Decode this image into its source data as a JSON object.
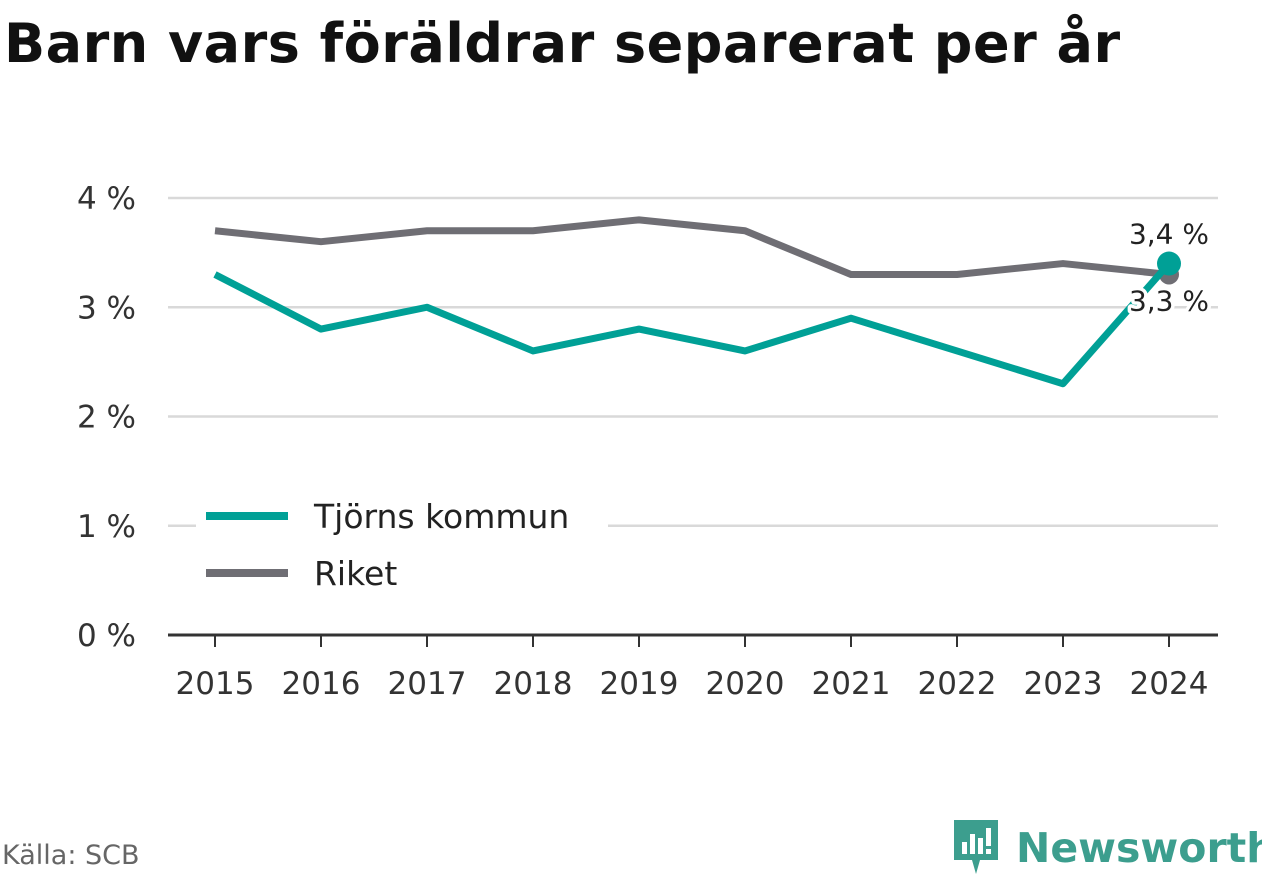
{
  "title": "Barn vars föräldrar separerat per år",
  "source": "Källa: SCB",
  "brand": "Newsworthy",
  "colors": {
    "tjorn": "#00a096",
    "riket": "#6f6e74",
    "grid": "#d9d9d9",
    "axis": "#333333",
    "brand": "#3c9e8e"
  },
  "icons": {
    "brand_logo": "newsworthy-logo-icon"
  },
  "chart_data": {
    "type": "line",
    "x": [
      "2015",
      "2016",
      "2017",
      "2018",
      "2019",
      "2020",
      "2021",
      "2022",
      "2023",
      "2024"
    ],
    "y_ticks": [
      "0 %",
      "1 %",
      "2 %",
      "3 %",
      "4 %"
    ],
    "ylim": [
      0,
      4
    ],
    "grid": true,
    "legend_position": "bottom-left",
    "series": [
      {
        "name": "Tjörns kommun",
        "color": "#00a096",
        "values": [
          3.3,
          2.8,
          3.0,
          2.6,
          2.8,
          2.6,
          2.9,
          2.6,
          2.3,
          3.4
        ],
        "end_label": "3,4 %"
      },
      {
        "name": "Riket",
        "color": "#6f6e74",
        "values": [
          3.7,
          3.6,
          3.7,
          3.7,
          3.8,
          3.7,
          3.3,
          3.3,
          3.4,
          3.3
        ],
        "end_label": "3,3 %"
      }
    ]
  }
}
